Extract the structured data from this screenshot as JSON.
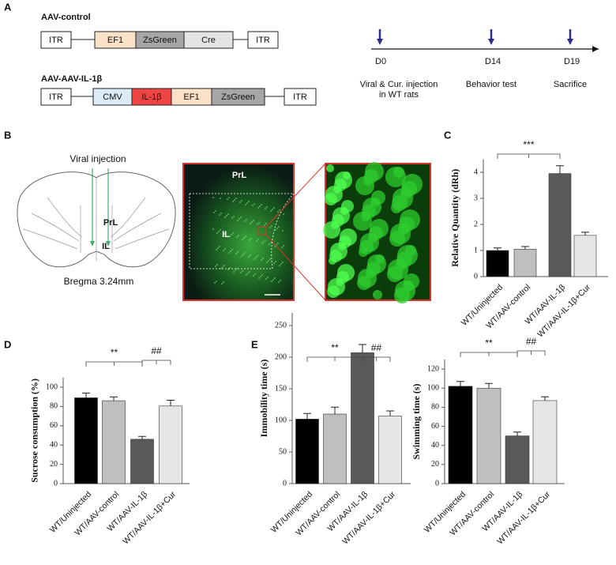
{
  "panel_labels": [
    "A",
    "B",
    "C",
    "D",
    "E"
  ],
  "constructs": [
    {
      "name": "AAV-control",
      "elements": [
        "ITR",
        "EF1",
        "ZsGreen",
        "Cre",
        "ITR"
      ]
    },
    {
      "name": "AAV-AAV-IL-1β",
      "elements": [
        "ITR",
        "CMV",
        "IL-1β",
        "EF1",
        "ZsGreen",
        "ITR"
      ]
    }
  ],
  "timeline": {
    "days": [
      "D0",
      "D14",
      "D19"
    ],
    "events": [
      [
        "Viral & Cur. injection",
        "in WT rats"
      ],
      [
        "Behavior test"
      ],
      [
        "Sacrifice"
      ]
    ]
  },
  "brain": {
    "title": "Viral injection",
    "regions": [
      "PrL",
      "IL"
    ],
    "caption": "Bregma 3.24mm"
  },
  "micrograph": {
    "regions": [
      "PrL",
      "IL"
    ]
  },
  "chart_data": [
    {
      "type": "bar",
      "ylabel": "Relative Quantity (dRh)",
      "categories": [
        "WT/Uninjected",
        "WT/AAV-control",
        "WT/AAV-IL-1β",
        "WT/AAV-IL-1β+Cur"
      ],
      "values": [
        1.0,
        1.05,
        3.95,
        1.58
      ],
      "errors": [
        0.1,
        0.1,
        0.3,
        0.12
      ],
      "colors": [
        "#000000",
        "#bfbfbf",
        "#595959",
        "#e6e6e6"
      ],
      "ylim": [
        0,
        4.5
      ],
      "yticks": [
        0,
        1,
        2,
        3,
        4
      ],
      "annotations": [
        "***"
      ]
    },
    {
      "type": "bar",
      "ylabel": "Sucrose consumption (%)",
      "categories": [
        "WT/Uninjected",
        "WT/AAV-control",
        "WT/AAV-IL-1β",
        "WT/AAV-IL-1β+Cur"
      ],
      "values": [
        89,
        86,
        46,
        80.5
      ],
      "errors": [
        5,
        4,
        3,
        6
      ],
      "colors": [
        "#000000",
        "#bfbfbf",
        "#595959",
        "#e6e6e6"
      ],
      "ylim": [
        0,
        110
      ],
      "yticks": [
        0,
        20,
        40,
        60,
        80,
        100
      ],
      "annotations": [
        "**",
        "##"
      ]
    },
    {
      "type": "bar",
      "ylabel": "Immobility time (s)",
      "categories": [
        "WT/Uninjected",
        "WT/AAV-control",
        "WT/AAV-IL-1β",
        "WT/AAV-IL-1β+Cur"
      ],
      "values": [
        102,
        110,
        207,
        107
      ],
      "errors": [
        9,
        11,
        13,
        8
      ],
      "colors": [
        "#000000",
        "#bfbfbf",
        "#595959",
        "#e6e6e6"
      ],
      "ylim": [
        0,
        270
      ],
      "yticks": [
        0,
        50,
        100,
        150,
        200,
        250
      ],
      "annotations": [
        "**",
        "##"
      ]
    },
    {
      "type": "bar",
      "ylabel": "Swimming time (s)",
      "categories": [
        "WT/Uninjected",
        "WT/AAV-control",
        "WT/AAV-IL-1β",
        "WT/AAV-IL-1β+Cur"
      ],
      "values": [
        102,
        100,
        50,
        87
      ],
      "errors": [
        5,
        5,
        4,
        4
      ],
      "colors": [
        "#000000",
        "#bfbfbf",
        "#595959",
        "#e6e6e6"
      ],
      "ylim": [
        0,
        130
      ],
      "yticks": [
        0,
        20,
        40,
        60,
        80,
        100,
        120
      ],
      "annotations": [
        "**",
        "##"
      ]
    }
  ]
}
